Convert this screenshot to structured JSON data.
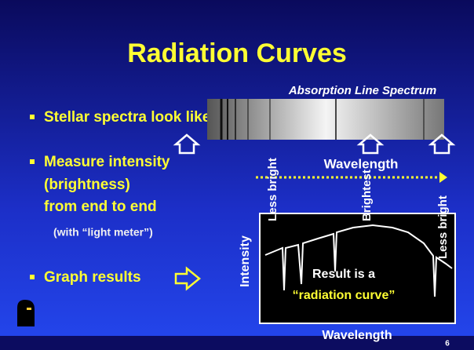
{
  "slide": {
    "title": "Radiation Curves",
    "bullets": [
      "Stellar spectra look like",
      "Measure intensity",
      "(brightness)",
      "from end to end",
      "(with “light meter”)",
      "Graph results"
    ],
    "spectrum_label": "Absorption Line Spectrum",
    "wavelength_top": "Wavelength",
    "brightness_labels": [
      "Less bright",
      "Brightest",
      "Less bright"
    ],
    "y_axis_label": "Intensity",
    "result_lines": [
      "Result is a",
      "“radiation curve”"
    ],
    "wavelength_bottom": "Wavelength",
    "page_number": "6"
  }
}
